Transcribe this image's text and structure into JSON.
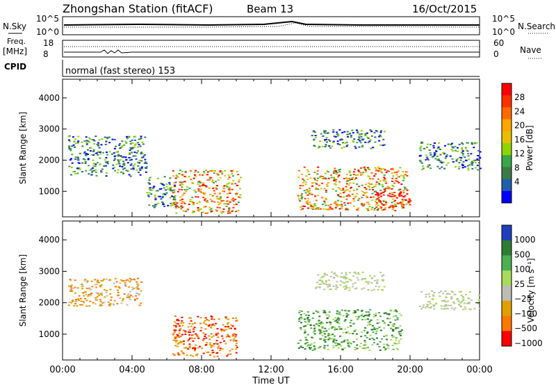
{
  "header": {
    "station": "Zhongshan Station (fitACF)",
    "beam": "Beam 13",
    "date": "16/Oct/2015"
  },
  "param_panels": {
    "nsky": {
      "label": "N.Sky",
      "ticks": [
        "10^5",
        "10^0"
      ]
    },
    "nsearch": {
      "label": "N.Search",
      "ticks": [
        "10^5",
        "10^0"
      ]
    },
    "freq": {
      "label_line1": "Freq.",
      "label_line2": "[MHz]",
      "ticks": [
        "18",
        "8"
      ]
    },
    "nave": {
      "label": "Nave",
      "ticks": [
        "60",
        "0"
      ]
    },
    "cpid": {
      "label": "CPID",
      "value": "normal (fast stereo) 153"
    }
  },
  "chart_data": [
    {
      "type": "heatmap",
      "title": "",
      "xlabel": "Time UT",
      "ylabel": "Slant Range [km]",
      "xticks": [
        "00:00",
        "04:00",
        "08:00",
        "12:00",
        "16:00",
        "20:00",
        "00:00"
      ],
      "xlim_hours": [
        0,
        24
      ],
      "yticks": [
        1000,
        2000,
        3000,
        4000
      ],
      "ylim": [
        180,
        4600
      ],
      "colorbar": {
        "label": "Power [dB]",
        "ticks": [
          "28",
          "24",
          "20",
          "16",
          "12",
          "8",
          "4"
        ],
        "colors": [
          "#ff0000",
          "#ff3000",
          "#ff6a00",
          "#ffa500",
          "#e6c000",
          "#8fd400",
          "#3aa64a",
          "#3c7a45",
          "#1f5fae",
          "#0000ff"
        ]
      },
      "echo_regions": [
        {
          "t0": 0.3,
          "t1": 4.8,
          "r0": 1500,
          "r1": 2800,
          "level": "low"
        },
        {
          "t0": 4.8,
          "t1": 6.5,
          "r0": 500,
          "r1": 1500,
          "level": "low"
        },
        {
          "t0": 6.3,
          "t1": 10.2,
          "r0": 300,
          "r1": 1700,
          "level": "high"
        },
        {
          "t0": 13.5,
          "t1": 19.8,
          "r0": 400,
          "r1": 1800,
          "level": "high"
        },
        {
          "t0": 17.8,
          "t1": 20.0,
          "r0": 500,
          "r1": 1000,
          "level": "peak"
        },
        {
          "t0": 14.2,
          "t1": 18.5,
          "r0": 2400,
          "r1": 3000,
          "level": "low"
        },
        {
          "t0": 20.5,
          "t1": 24.0,
          "r0": 1700,
          "r1": 2600,
          "level": "low"
        }
      ]
    },
    {
      "type": "heatmap",
      "title": "",
      "xlabel": "Time UT",
      "ylabel": "Slant Range [km]",
      "xticks": [
        "00:00",
        "04:00",
        "08:00",
        "12:00",
        "16:00",
        "20:00",
        "00:00"
      ],
      "xlim_hours": [
        0,
        24
      ],
      "yticks": [
        1000,
        2000,
        3000,
        4000
      ],
      "ylim": [
        180,
        4600
      ],
      "colorbar": {
        "label": "Velocity [m s⁻¹]",
        "ticks": [
          "1000",
          "500",
          "100",
          "25",
          "−25",
          "−100",
          "−500",
          "−1000"
        ],
        "colors": [
          "#1f3fbf",
          "#2e7d32",
          "#4caf50",
          "#a7dc5a",
          "#bdbdb5",
          "#e0a000",
          "#ff7700",
          "#ff0000"
        ]
      },
      "echo_regions": [
        {
          "t0": 0.3,
          "t1": 4.5,
          "r0": 1900,
          "r1": 2800,
          "level": "neg"
        },
        {
          "t0": 6.3,
          "t1": 10.0,
          "r0": 300,
          "r1": 1600,
          "level": "strong_neg"
        },
        {
          "t0": 13.5,
          "t1": 19.5,
          "r0": 500,
          "r1": 1800,
          "level": "pos"
        },
        {
          "t0": 14.5,
          "t1": 18.5,
          "r0": 2400,
          "r1": 3000,
          "level": "zero"
        },
        {
          "t0": 20.5,
          "t1": 24.0,
          "r0": 1800,
          "r1": 2400,
          "level": "zero"
        }
      ]
    }
  ]
}
